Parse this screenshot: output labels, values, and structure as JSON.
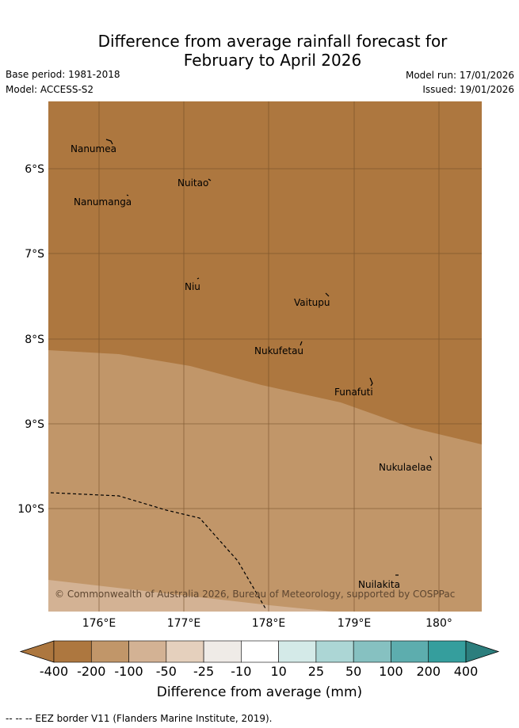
{
  "title_line1": "Difference from average rainfall forecast for",
  "title_line2": "February to April 2026",
  "meta": {
    "base_period": "Base period: 1981-2018",
    "model": "Model: ACCESS-S2",
    "model_run": "Model run: 17/01/2026",
    "issued": "Issued: 19/01/2026"
  },
  "map": {
    "lat_labels": [
      "6°S",
      "7°S",
      "8°S",
      "9°S",
      "10°S"
    ],
    "lon_labels": [
      "176°E",
      "177°E",
      "178°E",
      "179°E",
      "180°"
    ],
    "places": [
      {
        "name": "Nanumea"
      },
      {
        "name": "Nuitao"
      },
      {
        "name": "Nanumanga"
      },
      {
        "name": "Niu"
      },
      {
        "name": "Vaitupu"
      },
      {
        "name": "Nukufetau"
      },
      {
        "name": "Funafuti"
      },
      {
        "name": "Nukulaelae"
      },
      {
        "name": "Nuilakita"
      }
    ],
    "copyright": "© Commonwealth of Australia 2026, Bureau of Meteorology, supported by COSPPac",
    "colors": {
      "dark_brown": "#ad773f",
      "mid_brown": "#c19669",
      "grid_dark": "#6e4a24",
      "grid_light": "#8a6a48"
    }
  },
  "colorbar": {
    "ticks": [
      "-400",
      "-200",
      "-100",
      "-50",
      "-25",
      "-10",
      "10",
      "25",
      "50",
      "100",
      "200",
      "400"
    ],
    "colors": [
      "#ad773f",
      "#c19669",
      "#d3b294",
      "#e5d0bd",
      "#efebe7",
      "#ffffff",
      "#d4eae8",
      "#acd6d5",
      "#86c1c1",
      "#5dadae",
      "#359e9d",
      "#2c7e7d"
    ],
    "title": "Difference from average (mm)"
  },
  "footnote": "-- -- -- EEZ border V11 (Flanders Marine Institute, 2019)."
}
